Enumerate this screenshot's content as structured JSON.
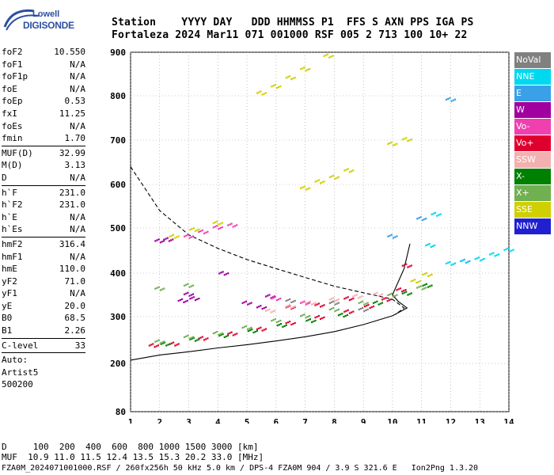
{
  "logo": {
    "line1": "Lowell",
    "line2": "DIGISONDE"
  },
  "header": {
    "row1": "Station    YYYY DAY   DDD HHMMSS P1  FFS S AXN PPS IGA PS",
    "row2": "Fortaleza 2024 Mar11 071 001000 RSF 005 2 713 100 10+ 22"
  },
  "params": {
    "group1": [
      {
        "k": "foF2",
        "v": "10.550"
      },
      {
        "k": "foF1",
        "v": "N/A"
      },
      {
        "k": "foF1p",
        "v": "N/A"
      },
      {
        "k": "foE",
        "v": "N/A"
      },
      {
        "k": "foEp",
        "v": "0.53"
      },
      {
        "k": "fxI",
        "v": "11.25"
      },
      {
        "k": "foEs",
        "v": "N/A"
      },
      {
        "k": "fmin",
        "v": "1.70"
      }
    ],
    "group2": [
      {
        "k": "MUF(D)",
        "v": "32.99"
      },
      {
        "k": "M(D)",
        "v": "3.13"
      },
      {
        "k": "D",
        "v": "N/A"
      }
    ],
    "group3": [
      {
        "k": "h`F",
        "v": "231.0"
      },
      {
        "k": "h`F2",
        "v": "231.0"
      },
      {
        "k": "h`E",
        "v": "N/A"
      },
      {
        "k": "h`Es",
        "v": "N/A"
      }
    ],
    "group4": [
      {
        "k": "hmF2",
        "v": "316.4"
      },
      {
        "k": "hmF1",
        "v": "N/A"
      },
      {
        "k": "hmE",
        "v": "110.0"
      },
      {
        "k": "yF2",
        "v": "71.0"
      },
      {
        "k": "yF1",
        "v": "N/A"
      },
      {
        "k": "yE",
        "v": "20.0"
      },
      {
        "k": "B0",
        "v": "68.5"
      },
      {
        "k": "B1",
        "v": "2.26"
      }
    ],
    "group5": [
      {
        "k": "C-level",
        "v": "33"
      }
    ],
    "auto": [
      "Auto:",
      "Artist5",
      "500200"
    ]
  },
  "legend": [
    {
      "label": "NoVal",
      "color": "#808080"
    },
    {
      "label": "NNE",
      "color": "#00d8f0"
    },
    {
      "label": "E",
      "color": "#3aa0e8"
    },
    {
      "label": "W",
      "color": "#a000a0"
    },
    {
      "label": "Vo-",
      "color": "#f040b0"
    },
    {
      "label": "Vo+",
      "color": "#e00030"
    },
    {
      "label": "SSW",
      "color": "#f4b0b0"
    },
    {
      "label": "X-",
      "color": "#008000"
    },
    {
      "label": "X+",
      "color": "#70b050"
    },
    {
      "label": "SSE",
      "color": "#d0d000"
    },
    {
      "label": "NNW",
      "color": "#2020d0"
    }
  ],
  "chart_data": {
    "type": "scatter",
    "xlim": [
      1,
      14
    ],
    "ylim": [
      80,
      900
    ],
    "x_ticks": [
      "1",
      "2",
      "3",
      "4",
      "5",
      "6",
      "7",
      "8",
      "9",
      "10",
      "11",
      "12",
      "13",
      "14"
    ],
    "y_ticks": [
      "80",
      "200",
      "300",
      "400",
      "500",
      "600",
      "700",
      "800",
      "900"
    ],
    "series": [
      {
        "name": "Vo+",
        "color": "#e00030",
        "points": [
          [
            1.8,
            237
          ],
          [
            2.5,
            240
          ],
          [
            3.5,
            252
          ],
          [
            4.5,
            262
          ],
          [
            5.5,
            272
          ],
          [
            6.5,
            285
          ],
          [
            7.5,
            297
          ],
          [
            8.5,
            310
          ],
          [
            9.2,
            322
          ],
          [
            9.8,
            338
          ],
          [
            10.3,
            360
          ],
          [
            10.5,
            415
          ],
          [
            6.5,
            320
          ],
          [
            7.5,
            325
          ],
          [
            8.5,
            340
          ]
        ]
      },
      {
        "name": "X-",
        "color": "#008000",
        "points": [
          [
            2.2,
            240
          ],
          [
            3.2,
            250
          ],
          [
            4.2,
            258
          ],
          [
            5.2,
            268
          ],
          [
            6.2,
            280
          ],
          [
            7.2,
            290
          ],
          [
            8.3,
            302
          ],
          [
            9.5,
            330
          ],
          [
            10.5,
            352
          ],
          [
            11.2,
            370
          ]
        ]
      },
      {
        "name": "X+",
        "color": "#70b050",
        "points": [
          [
            2.0,
            245
          ],
          [
            3.0,
            255
          ],
          [
            4.0,
            263
          ],
          [
            5.0,
            275
          ],
          [
            6.0,
            290
          ],
          [
            7.0,
            300
          ],
          [
            8.0,
            315
          ],
          [
            9.0,
            330
          ],
          [
            10.0,
            348
          ],
          [
            11.0,
            365
          ],
          [
            2.0,
            363
          ],
          [
            3.0,
            370
          ]
        ]
      },
      {
        "name": "SSW",
        "color": "#f4b0b0",
        "points": [
          [
            5.8,
            312
          ],
          [
            6.5,
            322
          ],
          [
            7.2,
            330
          ],
          [
            8.0,
            338
          ],
          [
            8.8,
            345
          ],
          [
            9.5,
            350
          ]
        ]
      },
      {
        "name": "W",
        "color": "#a000a0",
        "points": [
          [
            2.0,
            470
          ],
          [
            2.3,
            473
          ],
          [
            2.8,
            335
          ],
          [
            3.0,
            350
          ],
          [
            3.2,
            340
          ],
          [
            5.0,
            330
          ],
          [
            5.5,
            320
          ],
          [
            5.8,
            345
          ],
          [
            4.2,
            398
          ]
        ]
      },
      {
        "name": "Vo-",
        "color": "#f040b0",
        "points": [
          [
            3.0,
            480
          ],
          [
            3.5,
            490
          ],
          [
            4.0,
            500
          ],
          [
            4.5,
            505
          ],
          [
            6.0,
            340
          ],
          [
            7.0,
            330
          ],
          [
            12.5,
            425
          ]
        ]
      },
      {
        "name": "SSE",
        "color": "#d0d000",
        "points": [
          [
            5.5,
            805
          ],
          [
            6.0,
            820
          ],
          [
            6.5,
            840
          ],
          [
            7.0,
            860
          ],
          [
            7.8,
            890
          ],
          [
            7.0,
            590
          ],
          [
            7.5,
            605
          ],
          [
            8.0,
            615
          ],
          [
            8.5,
            630
          ],
          [
            10.0,
            690
          ],
          [
            10.5,
            700
          ],
          [
            2.5,
            480
          ],
          [
            3.2,
            495
          ],
          [
            4.0,
            510
          ],
          [
            10.8,
            380
          ],
          [
            11.2,
            395
          ]
        ]
      },
      {
        "name": "NNE",
        "color": "#00d8f0",
        "points": [
          [
            12.0,
            420
          ],
          [
            12.5,
            425
          ],
          [
            13.0,
            430
          ],
          [
            13.5,
            440
          ],
          [
            14.0,
            450
          ],
          [
            11.3,
            460
          ],
          [
            11.5,
            530
          ]
        ]
      },
      {
        "name": "E",
        "color": "#3aa0e8",
        "points": [
          [
            10.0,
            480
          ],
          [
            11.0,
            520
          ],
          [
            12.0,
            790
          ]
        ]
      },
      {
        "name": "NoVal",
        "color": "#808080",
        "points": [
          [
            6.5,
            335
          ],
          [
            8.0,
            330
          ],
          [
            9.0,
            315
          ]
        ]
      }
    ],
    "dashed_curve": [
      [
        1,
        640
      ],
      [
        2,
        540
      ],
      [
        3,
        485
      ],
      [
        4,
        455
      ],
      [
        5,
        430
      ],
      [
        6,
        410
      ],
      [
        7,
        390
      ],
      [
        8,
        370
      ],
      [
        9,
        355
      ],
      [
        10,
        340
      ],
      [
        10.4,
        320
      ],
      [
        10.1,
        305
      ]
    ],
    "solid_curve": [
      [
        1,
        207
      ],
      [
        2,
        218
      ],
      [
        3,
        225
      ],
      [
        4,
        233
      ],
      [
        5,
        240
      ],
      [
        6,
        248
      ],
      [
        7,
        257
      ],
      [
        8,
        268
      ],
      [
        9,
        283
      ],
      [
        10,
        302
      ],
      [
        10.5,
        320
      ],
      [
        10.2,
        335
      ],
      [
        10.0,
        350
      ],
      [
        10.4,
        410
      ],
      [
        10.6,
        465
      ]
    ]
  },
  "footer": {
    "line1": "D     100  200  400  600  800 1000 1500 3000 [km]",
    "line2": "MUF  10.9 11.0 11.5 12.4 13.5 15.3 20.2 33.0 [MHz]",
    "line3": "FZA0M_2024071001000.RSF / 260fx256h 50 kHz 5.0 km / DPS-4 FZA0M 904 / 3.9 S 321.6 E   Ion2Png 1.3.20"
  }
}
